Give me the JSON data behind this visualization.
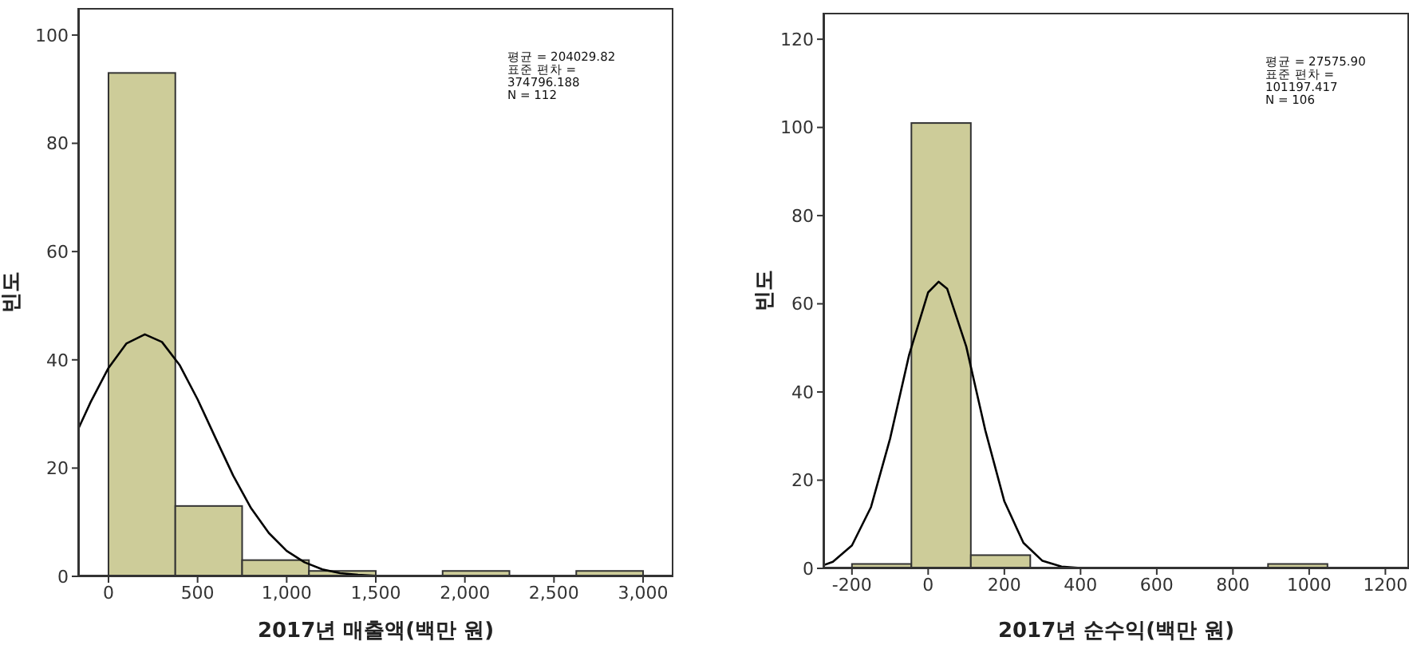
{
  "chart_data": [
    {
      "type": "histogram",
      "xlabel": "2017년 매출액(백만 원)",
      "ylabel": "빈도",
      "annotations": [
        "평균 = 204029.82",
        "표준 편차 =",
        "374796.188",
        "N = 112"
      ],
      "bins": [
        0,
        375,
        750,
        1125,
        1500,
        1875,
        2250,
        2625,
        3000
      ],
      "values": [
        93,
        13,
        3,
        1,
        0,
        1,
        0,
        1
      ],
      "color": "#cdcc99",
      "series": [
        {
          "type": "line",
          "color": "#000000",
          "x": [
            -170,
            -100,
            0,
            100,
            204,
            300,
            400,
            500,
            600,
            700,
            800,
            900,
            1000,
            1100,
            1200,
            1300,
            1400,
            1500,
            1600,
            1700
          ],
          "values": [
            27.2,
            32.2,
            38.5,
            43.0,
            44.7,
            43.3,
            39.0,
            32.7,
            25.6,
            18.6,
            12.6,
            8.0,
            4.7,
            2.6,
            1.3,
            0.6,
            0.3,
            0.1,
            0,
            0
          ]
        }
      ],
      "xlim": [
        -170,
        3170
      ],
      "xticks": [
        0,
        500,
        {
          "value": 1000,
          "label": "1,000"
        },
        {
          "value": 1500,
          "label": "1,500"
        },
        {
          "value": 2000,
          "label": "2,000"
        },
        {
          "value": 2500,
          "label": "2,500"
        },
        {
          "value": 3000,
          "label": "3,000"
        }
      ],
      "ylim": [
        0,
        105
      ],
      "yticks": [
        0,
        20,
        40,
        60,
        80,
        100
      ],
      "grid": false,
      "legend": false,
      "marker": "none"
    },
    {
      "type": "histogram",
      "xlabel": "2017년 순수익(백만 원)",
      "ylabel": "빈도",
      "annotations": [
        "평균 = 27575.90",
        "표준 편차 =",
        "101197.417",
        "N = 106"
      ],
      "bins": [
        -200,
        -44,
        112,
        268,
        424,
        580,
        736,
        892,
        1048
      ],
      "values": [
        1,
        101,
        3,
        0,
        0,
        0,
        0,
        1
      ],
      "color": "#cdcc99",
      "series": [
        {
          "type": "line",
          "color": "#000000",
          "x": [
            -275,
            -250,
            -200,
            -150,
            -100,
            -50,
            0,
            27.6,
            50,
            100,
            150,
            200,
            250,
            300,
            350,
            400,
            450
          ],
          "values": [
            0.7,
            1.5,
            5.2,
            13.9,
            29.4,
            48.4,
            62.6,
            65,
            63.4,
            50.3,
            31.3,
            15.2,
            5.8,
            1.7,
            0.4,
            0.1,
            0
          ]
        }
      ],
      "xlim": [
        -275,
        1262
      ],
      "xticks": [
        -200,
        0,
        200,
        400,
        600,
        800,
        1000,
        1200
      ],
      "ylim": [
        0,
        126
      ],
      "yticks": [
        0,
        20,
        40,
        60,
        80,
        100,
        120
      ],
      "grid": false,
      "legend": false,
      "marker": "none"
    }
  ]
}
